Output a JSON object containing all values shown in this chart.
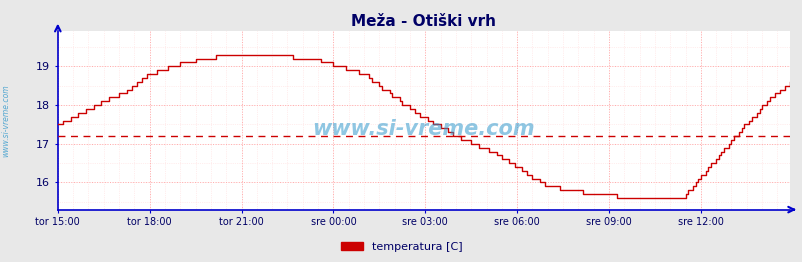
{
  "title": "Meža - Otiški vrh",
  "title_color": "#000066",
  "title_fontsize": 11,
  "bg_color": "#e8e8e8",
  "plot_bg_color": "#ffffff",
  "line_color": "#cc0000",
  "grid_color_major": "#ffaaaa",
  "grid_color_minor": "#ffdddd",
  "axis_color": "#0000cc",
  "tick_label_color": "#000066",
  "watermark_color": "#3399cc",
  "ylim": [
    15.3,
    19.9
  ],
  "yticks": [
    16,
    17,
    18,
    19
  ],
  "avg_line_y": 17.2,
  "xlabel_labels": [
    "tor 15:00",
    "tor 18:00",
    "tor 21:00",
    "sre 00:00",
    "sre 03:00",
    "sre 06:00",
    "sre 09:00",
    "sre 12:00"
  ],
  "legend_label": "temperatura [C]",
  "legend_color": "#cc0000",
  "watermark_text": "www.si-vreme.com",
  "sidebar_text": "www.si-vreme.com",
  "n_points": 288,
  "key_indices": [
    0,
    6,
    15,
    25,
    36,
    50,
    65,
    84,
    100,
    120,
    138,
    156,
    170,
    192,
    210,
    228,
    245,
    264,
    278,
    287
  ],
  "key_temps": [
    17.5,
    17.7,
    18.0,
    18.3,
    18.8,
    19.1,
    19.3,
    19.3,
    19.2,
    18.8,
    17.9,
    17.2,
    16.8,
    15.9,
    15.7,
    15.6,
    15.6,
    17.1,
    18.1,
    18.6
  ]
}
